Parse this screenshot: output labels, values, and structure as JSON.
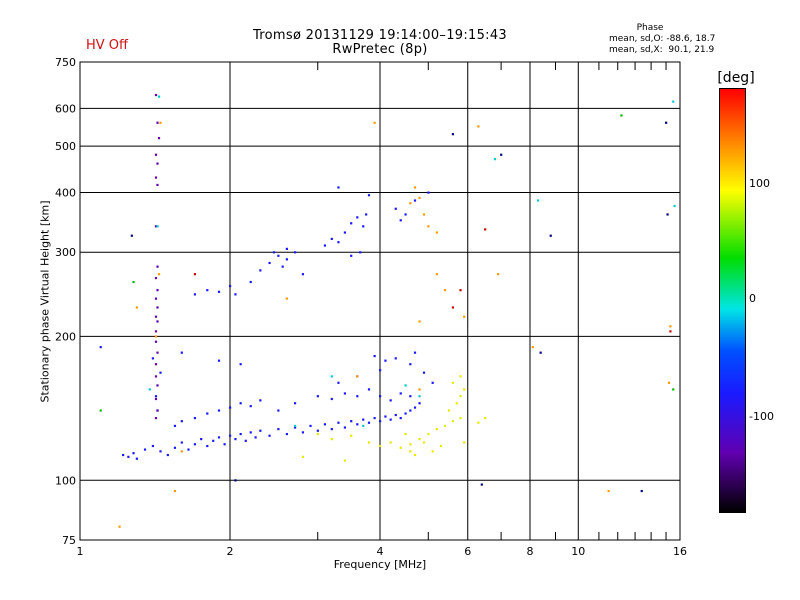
{
  "header": {
    "title_line1": "Tromsø 20131129 19:14:00–19:15:43",
    "title_line2": "RwPretec (8p)",
    "status": "HV Off",
    "phase_title": "Phase",
    "phase_line1": "mean, sd,O: -88.6, 18.7",
    "phase_line2": "mean, sd,X:  90.1, 21.9"
  },
  "colorbar": {
    "label": "[deg]",
    "ticks": [
      "100",
      "0",
      "-100"
    ],
    "colors": [
      "#ff0000",
      "#ffff00",
      "#00dd00",
      "#00e5e5",
      "#1a1aff",
      "#000000"
    ]
  },
  "chart_data": {
    "type": "scatter",
    "title": "Tromsø 20131129 19:14:00–19:15:43",
    "subtitle": "RwPretec (8p)",
    "xlabel": "Frequency [MHz]",
    "ylabel": "Stationary phase Virtual Height [km]",
    "x_scale": "log",
    "y_scale": "log",
    "xlim": [
      1,
      16
    ],
    "ylim": [
      75,
      750
    ],
    "x_ticks": [
      1,
      2,
      4,
      6,
      8,
      10,
      16
    ],
    "x_tick_labels": [
      "1",
      "2",
      "4",
      "6",
      "8",
      "10",
      "16"
    ],
    "y_ticks": [
      75,
      100,
      200,
      300,
      400,
      500,
      600,
      750
    ],
    "y_tick_labels": [
      "75",
      "100",
      "200",
      "300",
      "400",
      "500",
      "600",
      "750"
    ],
    "grid": true,
    "series": [
      {
        "color": "#1a1aff",
        "points": [
          [
            1.22,
            113
          ],
          [
            1.25,
            112
          ],
          [
            1.28,
            114
          ],
          [
            1.3,
            111
          ],
          [
            1.35,
            116
          ],
          [
            1.4,
            118
          ],
          [
            1.45,
            115
          ],
          [
            1.5,
            113
          ],
          [
            1.55,
            117
          ],
          [
            1.6,
            120
          ],
          [
            1.65,
            116
          ],
          [
            1.7,
            119
          ],
          [
            1.75,
            122
          ],
          [
            1.8,
            118
          ],
          [
            1.85,
            121
          ],
          [
            1.9,
            123
          ],
          [
            1.95,
            119
          ],
          [
            2.0,
            124
          ],
          [
            2.05,
            122
          ],
          [
            2.1,
            125
          ],
          [
            2.15,
            121
          ],
          [
            2.2,
            126
          ],
          [
            2.25,
            123
          ],
          [
            2.3,
            127
          ],
          [
            2.4,
            124
          ],
          [
            2.5,
            128
          ],
          [
            2.6,
            125
          ],
          [
            2.7,
            129
          ],
          [
            2.8,
            126
          ],
          [
            2.9,
            130
          ],
          [
            3.0,
            127
          ],
          [
            3.1,
            131
          ],
          [
            3.2,
            128
          ],
          [
            3.3,
            132
          ],
          [
            3.4,
            129
          ],
          [
            3.5,
            133
          ],
          [
            3.6,
            131
          ],
          [
            3.7,
            134
          ],
          [
            3.8,
            132
          ],
          [
            3.9,
            135
          ],
          [
            4.0,
            133
          ],
          [
            4.1,
            136
          ],
          [
            4.2,
            134
          ],
          [
            4.3,
            137
          ],
          [
            4.4,
            135
          ],
          [
            4.5,
            138
          ],
          [
            4.6,
            140
          ],
          [
            4.7,
            142
          ],
          [
            4.8,
            145
          ],
          [
            1.55,
            130
          ],
          [
            1.6,
            133
          ],
          [
            1.7,
            135
          ],
          [
            1.8,
            138
          ],
          [
            1.9,
            140
          ],
          [
            2.0,
            142
          ],
          [
            2.1,
            145
          ],
          [
            2.2,
            143
          ],
          [
            2.3,
            147
          ],
          [
            2.5,
            140
          ],
          [
            2.7,
            145
          ],
          [
            3.0,
            150
          ],
          [
            3.2,
            148
          ],
          [
            3.4,
            152
          ],
          [
            3.6,
            150
          ],
          [
            3.8,
            155
          ],
          [
            4.0,
            150
          ],
          [
            4.2,
            147
          ],
          [
            4.4,
            152
          ],
          [
            4.6,
            150
          ],
          [
            3.3,
            160
          ],
          [
            3.6,
            165
          ],
          [
            4.0,
            170
          ],
          [
            4.3,
            180
          ],
          [
            4.6,
            175
          ],
          [
            4.9,
            168
          ],
          [
            5.1,
            160
          ],
          [
            3.9,
            182
          ],
          [
            4.1,
            178
          ],
          [
            4.7,
            185
          ],
          [
            1.4,
            180
          ],
          [
            1.6,
            185
          ],
          [
            1.9,
            178
          ],
          [
            2.1,
            175
          ],
          [
            1.1,
            190
          ],
          [
            1.45,
            168
          ],
          [
            1.42,
            150
          ],
          [
            1.43,
            140
          ]
        ]
      },
      {
        "color": "#1a1aff",
        "points": [
          [
            1.7,
            245
          ],
          [
            1.8,
            250
          ],
          [
            1.9,
            248
          ],
          [
            2.0,
            255
          ],
          [
            2.05,
            245
          ],
          [
            2.2,
            260
          ],
          [
            2.3,
            275
          ],
          [
            2.4,
            285
          ],
          [
            2.5,
            295
          ],
          [
            2.6,
            290
          ],
          [
            2.7,
            300
          ],
          [
            2.55,
            280
          ],
          [
            2.8,
            270
          ],
          [
            3.1,
            310
          ],
          [
            3.2,
            320
          ],
          [
            3.3,
            315
          ],
          [
            3.4,
            330
          ],
          [
            3.5,
            345
          ],
          [
            3.6,
            355
          ],
          [
            3.7,
            340
          ],
          [
            3.75,
            360
          ],
          [
            3.65,
            300
          ],
          [
            3.5,
            295
          ],
          [
            4.3,
            370
          ],
          [
            4.5,
            360
          ],
          [
            4.7,
            385
          ],
          [
            5.0,
            400
          ],
          [
            4.4,
            350
          ],
          [
            3.3,
            410
          ],
          [
            3.8,
            395
          ],
          [
            2.6,
            305
          ],
          [
            2.45,
            300
          ]
        ]
      },
      {
        "color": "#6000b0",
        "points": [
          [
            1.42,
            640
          ],
          [
            1.43,
            560
          ],
          [
            1.44,
            520
          ],
          [
            1.42,
            480
          ],
          [
            1.43,
            460
          ],
          [
            1.42,
            430
          ],
          [
            1.43,
            415
          ],
          [
            1.42,
            340
          ],
          [
            1.43,
            280
          ],
          [
            1.42,
            265
          ],
          [
            1.43,
            250
          ],
          [
            1.42,
            240
          ],
          [
            1.43,
            230
          ],
          [
            1.42,
            220
          ],
          [
            1.43,
            215
          ],
          [
            1.42,
            205
          ],
          [
            1.42,
            195
          ],
          [
            1.43,
            185
          ],
          [
            1.42,
            175
          ],
          [
            1.42,
            165
          ],
          [
            1.43,
            158
          ],
          [
            1.42,
            148
          ],
          [
            1.43,
            140
          ],
          [
            1.42,
            135
          ]
        ]
      },
      {
        "color": "#e8e800",
        "points": [
          [
            3.0,
            125
          ],
          [
            3.2,
            122
          ],
          [
            3.5,
            124
          ],
          [
            3.8,
            120
          ],
          [
            4.0,
            118
          ],
          [
            4.2,
            120
          ],
          [
            4.4,
            117
          ],
          [
            4.6,
            119
          ],
          [
            4.8,
            122
          ],
          [
            5.0,
            125
          ],
          [
            5.2,
            128
          ],
          [
            5.4,
            130
          ],
          [
            5.6,
            133
          ],
          [
            5.8,
            135
          ],
          [
            5.5,
            140
          ],
          [
            5.7,
            145
          ],
          [
            5.8,
            150
          ],
          [
            5.9,
            155
          ],
          [
            5.6,
            160
          ],
          [
            5.8,
            165
          ],
          [
            6.3,
            132
          ],
          [
            6.5,
            135
          ],
          [
            4.5,
            125
          ],
          [
            4.9,
            120
          ],
          [
            5.3,
            118
          ],
          [
            4.7,
            113
          ],
          [
            5.1,
            115
          ],
          [
            3.4,
            110
          ],
          [
            2.8,
            112
          ],
          [
            4.6,
            115
          ],
          [
            5.9,
            120
          ]
        ]
      },
      {
        "color": "#ff9900",
        "points": [
          [
            1.45,
            560
          ],
          [
            1.44,
            270
          ],
          [
            1.42,
            200
          ],
          [
            1.3,
            230
          ],
          [
            4.7,
            410
          ],
          [
            4.8,
            390
          ],
          [
            4.9,
            360
          ],
          [
            5.0,
            340
          ],
          [
            5.2,
            330
          ],
          [
            4.6,
            380
          ],
          [
            3.9,
            560
          ],
          [
            1.6,
            115
          ],
          [
            1.2,
            80
          ],
          [
            1.55,
            95
          ],
          [
            6.3,
            550
          ],
          [
            8.1,
            190
          ],
          [
            11.5,
            95
          ],
          [
            6.9,
            270
          ],
          [
            15.2,
            160
          ],
          [
            15.3,
            210
          ],
          [
            5.4,
            250
          ],
          [
            5.2,
            270
          ],
          [
            5.9,
            220
          ],
          [
            4.8,
            155
          ],
          [
            2.6,
            240
          ],
          [
            3.6,
            165
          ],
          [
            4.8,
            215
          ]
        ]
      },
      {
        "color": "#cc0000",
        "points": [
          [
            1.7,
            270
          ],
          [
            6.5,
            335
          ],
          [
            15.3,
            205
          ],
          [
            5.8,
            250
          ],
          [
            5.6,
            230
          ]
        ]
      },
      {
        "color": "#00cccc",
        "points": [
          [
            1.44,
            635
          ],
          [
            1.43,
            340
          ],
          [
            1.38,
            155
          ],
          [
            15.5,
            620
          ],
          [
            15.6,
            375
          ],
          [
            8.3,
            385
          ],
          [
            6.8,
            470
          ],
          [
            2.7,
            130
          ],
          [
            3.2,
            165
          ],
          [
            3.7,
            130
          ],
          [
            4.5,
            158
          ],
          [
            4.8,
            150
          ]
        ]
      },
      {
        "color": "#00bb00",
        "points": [
          [
            1.1,
            140
          ],
          [
            1.28,
            260
          ],
          [
            12.2,
            580
          ],
          [
            15.5,
            155
          ]
        ]
      },
      {
        "color": "#000080",
        "points": [
          [
            15.0,
            560
          ],
          [
            15.1,
            360
          ],
          [
            5.6,
            530
          ],
          [
            7.0,
            480
          ],
          [
            8.8,
            325
          ],
          [
            8.4,
            185
          ],
          [
            13.4,
            95
          ],
          [
            6.4,
            98
          ],
          [
            1.27,
            325
          ],
          [
            2.05,
            100
          ]
        ]
      }
    ]
  }
}
